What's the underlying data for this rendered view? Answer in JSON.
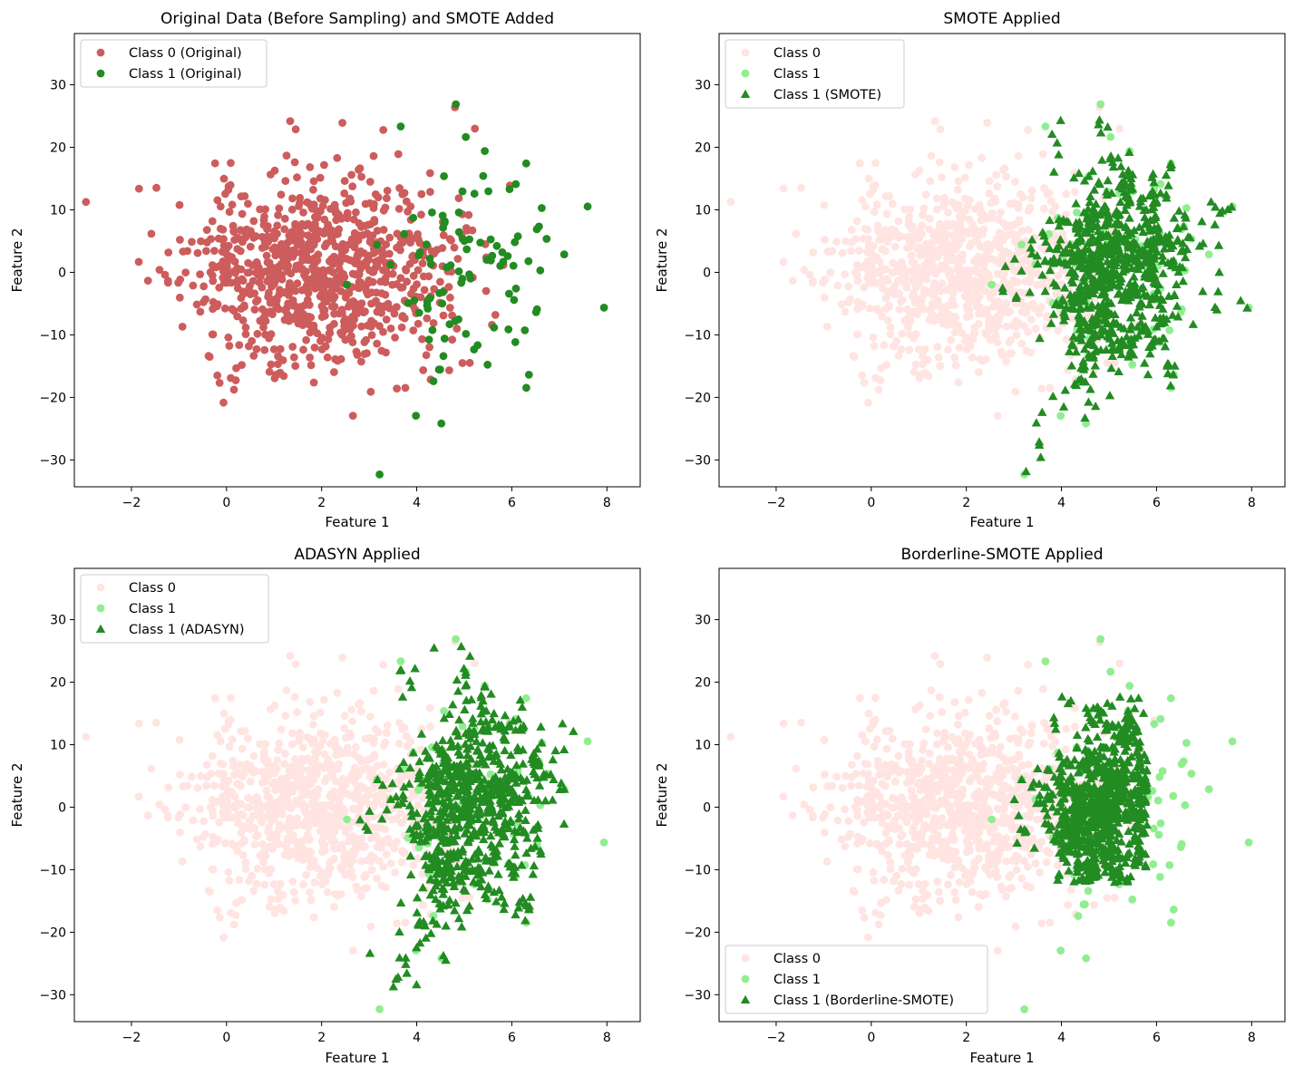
{
  "figure": {
    "colors": {
      "class0_original": "#cd5c5c",
      "class1_original": "#228b22",
      "class0_faded": "#ffe4e1",
      "class1_faded": "#90ee90",
      "synthetic": "#228b22",
      "axes": "#000000",
      "background": "#ffffff"
    }
  },
  "chart_data": [
    {
      "type": "scatter",
      "title": "Original Data (Before Sampling) and SMOTE Added",
      "xlabel": "Feature 1",
      "ylabel": "Feature 2",
      "xlim": [
        -3.2,
        8.7
      ],
      "ylim": [
        -34.3,
        38.2
      ],
      "xticks": [
        -2,
        0,
        2,
        4,
        6,
        8
      ],
      "yticks": [
        -30,
        -20,
        -10,
        0,
        10,
        20,
        30
      ],
      "legend_position": "upper-left",
      "legend": [
        {
          "label": "Class 0 (Original)",
          "color": "#cd5c5c",
          "marker": "circle"
        },
        {
          "label": "Class 1 (Original)",
          "color": "#228b22",
          "marker": "circle"
        }
      ],
      "series": [
        {
          "name": "Class 0 (Original)",
          "role": "class0",
          "color": "#cd5c5c",
          "marker": "circle",
          "generated": {
            "kind": "gaussian",
            "count": 900,
            "center": [
              1.9,
              0.5
            ],
            "spread": [
              1.4,
              7.5
            ],
            "seed": 11
          }
        },
        {
          "name": "Class 1 (Original)",
          "role": "class1",
          "color": "#228b22",
          "marker": "circle",
          "generated": {
            "kind": "gaussian",
            "count": 100,
            "center": [
              5.0,
              1.0
            ],
            "spread": [
              1.0,
              10.0
            ],
            "seed": 29
          }
        }
      ]
    },
    {
      "type": "scatter",
      "title": "SMOTE Applied",
      "xlabel": "Feature 1",
      "ylabel": "Feature 2",
      "xlim": [
        -3.2,
        8.7
      ],
      "ylim": [
        -34.3,
        38.2
      ],
      "xticks": [
        -2,
        0,
        2,
        4,
        6,
        8
      ],
      "yticks": [
        -30,
        -20,
        -10,
        0,
        10,
        20,
        30
      ],
      "legend_position": "upper-left",
      "legend": [
        {
          "label": "Class 0",
          "color": "#ffe4e1",
          "marker": "circle"
        },
        {
          "label": "Class 1",
          "color": "#90ee90",
          "marker": "circle"
        },
        {
          "label": "Class 1 (SMOTE)",
          "color": "#228b22",
          "marker": "triangle"
        }
      ],
      "series": [
        {
          "name": "Class 0",
          "role": "class0",
          "color": "#ffe4e1",
          "marker": "circle",
          "generated": {
            "kind": "gaussian",
            "count": 900,
            "center": [
              1.9,
              0.5
            ],
            "spread": [
              1.4,
              7.5
            ],
            "seed": 11
          }
        },
        {
          "name": "Class 1",
          "role": "class1",
          "color": "#90ee90",
          "marker": "circle",
          "generated": {
            "kind": "gaussian",
            "count": 100,
            "center": [
              5.0,
              1.0
            ],
            "spread": [
              1.0,
              10.0
            ],
            "seed": 29
          }
        },
        {
          "name": "Class 1 (SMOTE)",
          "role": "synthetic",
          "color": "#228b22",
          "marker": "triangle",
          "generated": {
            "kind": "interpolate",
            "from": "class1",
            "count": 800,
            "seed": 41
          }
        }
      ]
    },
    {
      "type": "scatter",
      "title": "ADASYN Applied",
      "xlabel": "Feature 1",
      "ylabel": "Feature 2",
      "xlim": [
        -3.2,
        8.7
      ],
      "ylim": [
        -34.3,
        38.2
      ],
      "xticks": [
        -2,
        0,
        2,
        4,
        6,
        8
      ],
      "yticks": [
        -30,
        -20,
        -10,
        0,
        10,
        20,
        30
      ],
      "legend_position": "upper-left",
      "legend": [
        {
          "label": "Class 0",
          "color": "#ffe4e1",
          "marker": "circle"
        },
        {
          "label": "Class 1",
          "color": "#90ee90",
          "marker": "circle"
        },
        {
          "label": "Class 1 (ADASYN)",
          "color": "#228b22",
          "marker": "triangle"
        }
      ],
      "series": [
        {
          "name": "Class 0",
          "role": "class0",
          "color": "#ffe4e1",
          "marker": "circle",
          "generated": {
            "kind": "gaussian",
            "count": 900,
            "center": [
              1.9,
              0.5
            ],
            "spread": [
              1.4,
              7.5
            ],
            "seed": 11
          }
        },
        {
          "name": "Class 1",
          "role": "class1",
          "color": "#90ee90",
          "marker": "circle",
          "generated": {
            "kind": "gaussian",
            "count": 100,
            "center": [
              5.0,
              1.0
            ],
            "spread": [
              1.0,
              10.0
            ],
            "seed": 29
          }
        },
        {
          "name": "Class 1 (ADASYN)",
          "role": "synthetic",
          "color": "#228b22",
          "marker": "triangle",
          "generated": {
            "kind": "interpolate",
            "from": "class1",
            "count": 800,
            "seed": 53,
            "xmax": 7.5
          }
        }
      ]
    },
    {
      "type": "scatter",
      "title": "Borderline-SMOTE Applied",
      "xlabel": "Feature 1",
      "ylabel": "Feature 2",
      "xlim": [
        -3.2,
        8.7
      ],
      "ylim": [
        -34.3,
        38.2
      ],
      "xticks": [
        -2,
        0,
        2,
        4,
        6,
        8
      ],
      "yticks": [
        -30,
        -20,
        -10,
        0,
        10,
        20,
        30
      ],
      "legend_position": "lower-left",
      "legend": [
        {
          "label": "Class 0",
          "color": "#ffe4e1",
          "marker": "circle"
        },
        {
          "label": "Class 1",
          "color": "#90ee90",
          "marker": "circle"
        },
        {
          "label": "Class 1 (Borderline-SMOTE)",
          "color": "#228b22",
          "marker": "triangle"
        }
      ],
      "series": [
        {
          "name": "Class 0",
          "role": "class0",
          "color": "#ffe4e1",
          "marker": "circle",
          "generated": {
            "kind": "gaussian",
            "count": 900,
            "center": [
              1.9,
              0.5
            ],
            "spread": [
              1.4,
              7.5
            ],
            "seed": 11
          }
        },
        {
          "name": "Class 1",
          "role": "class1",
          "color": "#90ee90",
          "marker": "circle",
          "generated": {
            "kind": "gaussian",
            "count": 100,
            "center": [
              5.0,
              1.0
            ],
            "spread": [
              1.0,
              10.0
            ],
            "seed": 29
          }
        },
        {
          "name": "Class 1 (Borderline-SMOTE)",
          "role": "synthetic",
          "color": "#228b22",
          "marker": "triangle",
          "generated": {
            "kind": "interpolate",
            "from": "class1",
            "count": 800,
            "seed": 67,
            "xmin": 3.0,
            "xmax": 5.8,
            "ymin": -12,
            "ymax": 18
          }
        }
      ]
    }
  ]
}
